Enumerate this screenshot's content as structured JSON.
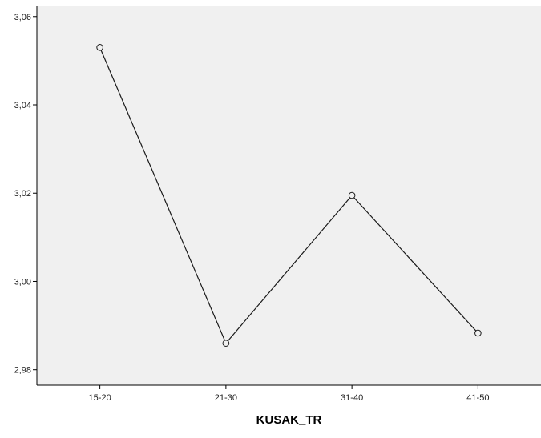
{
  "chart_data": {
    "type": "line",
    "title": "",
    "xlabel": "KUSAK_TR",
    "ylabel": "",
    "categories": [
      "15-20",
      "21-30",
      "31-40",
      "41-50"
    ],
    "series": [
      {
        "values": [
          3.053,
          2.986,
          3.0195,
          2.9883
        ]
      }
    ],
    "ylim": [
      2.9765,
      3.0625
    ],
    "yticks": [
      2.98,
      3.0,
      3.02,
      3.04,
      3.06
    ],
    "ytick_labels": [
      "2,98",
      "3,00",
      "3,02",
      "3,04",
      "3,06"
    ],
    "grid": false,
    "legend": "none",
    "markers": "open-circle",
    "colors": {
      "plot_background": "#f0f0f0",
      "line": "#1a1a1a",
      "axis": "#000000"
    }
  }
}
